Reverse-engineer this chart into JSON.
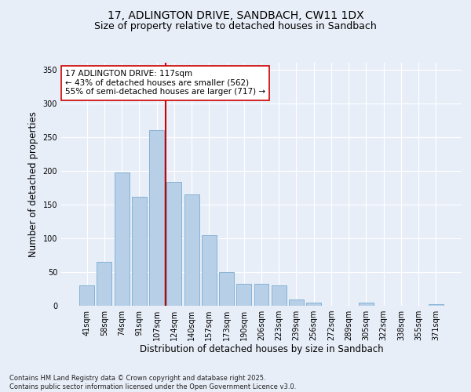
{
  "title": "17, ADLINGTON DRIVE, SANDBACH, CW11 1DX",
  "subtitle": "Size of property relative to detached houses in Sandbach",
  "xlabel": "Distribution of detached houses by size in Sandbach",
  "ylabel": "Number of detached properties",
  "categories": [
    "41sqm",
    "58sqm",
    "74sqm",
    "91sqm",
    "107sqm",
    "124sqm",
    "140sqm",
    "157sqm",
    "173sqm",
    "190sqm",
    "206sqm",
    "223sqm",
    "239sqm",
    "256sqm",
    "272sqm",
    "289sqm",
    "305sqm",
    "322sqm",
    "338sqm",
    "355sqm",
    "371sqm"
  ],
  "values": [
    30,
    65,
    197,
    162,
    260,
    183,
    165,
    105,
    50,
    33,
    32,
    30,
    9,
    5,
    0,
    0,
    5,
    0,
    0,
    0,
    2
  ],
  "bar_color": "#b8cfe8",
  "bar_edge_color": "#7aabd0",
  "vline_color": "#cc0000",
  "vline_pos": 4.5,
  "annotation_line1": "17 ADLINGTON DRIVE: 117sqm",
  "annotation_line2": "← 43% of detached houses are smaller (562)",
  "annotation_line3": "55% of semi-detached houses are larger (717) →",
  "annotation_box_color": "#ffffff",
  "annotation_box_edge": "#cc0000",
  "footer": "Contains HM Land Registry data © Crown copyright and database right 2025.\nContains public sector information licensed under the Open Government Licence v3.0.",
  "ylim": [
    0,
    360
  ],
  "yticks": [
    0,
    50,
    100,
    150,
    200,
    250,
    300,
    350
  ],
  "background_color": "#e8eef8",
  "grid_color": "#ffffff",
  "title_fontsize": 10,
  "subtitle_fontsize": 9,
  "tick_fontsize": 7,
  "ylabel_fontsize": 8.5,
  "xlabel_fontsize": 8.5,
  "annotation_fontsize": 7.5,
  "footer_fontsize": 6
}
